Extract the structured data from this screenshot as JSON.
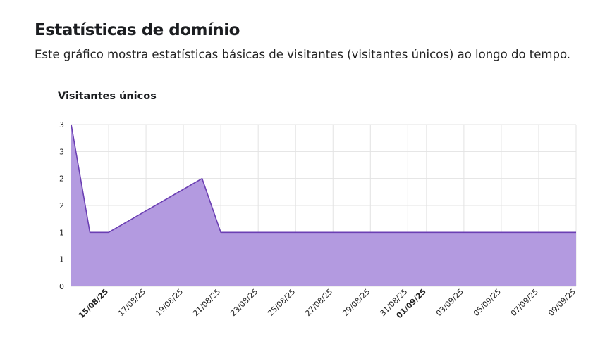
{
  "header": {
    "title": "Estatísticas de domínio",
    "description": "Este gráfico mostra estatísticas básicas de visitantes (visitantes únicos) ao longo do tempo."
  },
  "chart_data": {
    "type": "area",
    "title": "Visitantes únicos",
    "xlabel": "",
    "ylabel": "",
    "x_start": "13/08/25",
    "x_end": "09/09/25",
    "ylim": [
      0,
      3
    ],
    "y_tick_values": [
      0,
      0.5,
      1,
      1.5,
      2,
      2.5,
      3
    ],
    "y_tick_labels": [
      "0",
      "1",
      "1",
      "2",
      "2",
      "3",
      "3"
    ],
    "x_tick_labels": [
      {
        "label": "15/08/25",
        "bold": true
      },
      {
        "label": "17/08/25",
        "bold": false
      },
      {
        "label": "19/08/25",
        "bold": false
      },
      {
        "label": "21/08/25",
        "bold": false
      },
      {
        "label": "23/08/25",
        "bold": false
      },
      {
        "label": "25/08/25",
        "bold": false
      },
      {
        "label": "27/08/25",
        "bold": false
      },
      {
        "label": "29/08/25",
        "bold": false
      },
      {
        "label": "31/08/25",
        "bold": false
      },
      {
        "label": "01/09/25",
        "bold": true
      },
      {
        "label": "03/09/25",
        "bold": false
      },
      {
        "label": "05/09/25",
        "bold": false
      },
      {
        "label": "07/09/25",
        "bold": false
      },
      {
        "label": "09/09/25",
        "bold": false
      }
    ],
    "grid": true,
    "series": [
      {
        "color": "#6b3fb3",
        "fill": "#b39ae0",
        "points": [
          {
            "x": "13/08/25",
            "y": 3
          },
          {
            "x": "14/08/25",
            "y": 1
          },
          {
            "x": "15/08/25",
            "y": 1
          },
          {
            "x": "20/08/25",
            "y": 2
          },
          {
            "x": "21/08/25",
            "y": 1
          },
          {
            "x": "09/09/25",
            "y": 1
          }
        ]
      }
    ]
  }
}
